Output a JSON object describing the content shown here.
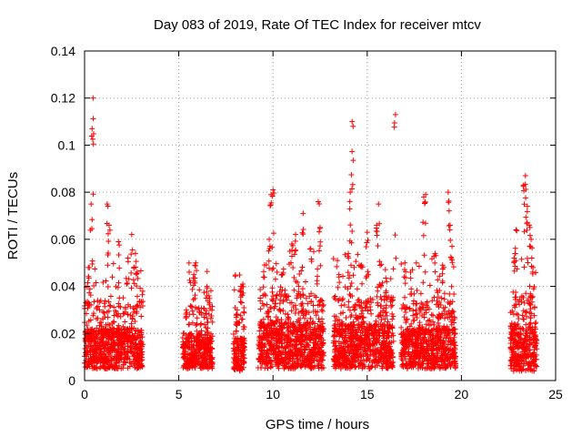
{
  "chart_data": {
    "type": "scatter",
    "title": "Day 083 of 2019, Rate Of TEC Index for receiver mtcv",
    "xlabel": "GPS time / hours",
    "ylabel": "ROTI / TECUs",
    "xlim": [
      0,
      25
    ],
    "ylim": [
      0,
      0.14
    ],
    "x_ticks": [
      0,
      5,
      10,
      15,
      20,
      25
    ],
    "x_tick_labels": [
      "0",
      "5",
      "10",
      "15",
      "20",
      "25"
    ],
    "y_ticks": [
      0,
      0.02,
      0.04,
      0.06,
      0.08,
      0.1,
      0.12,
      0.14
    ],
    "y_tick_labels": [
      "0",
      "0.02",
      "0.04",
      "0.06",
      "0.08",
      "0.1",
      "0.12",
      "0.14"
    ],
    "grid": true,
    "marker": "+",
    "series_color": "#ff0000",
    "clusters": [
      {
        "x_range": [
          0.0,
          3.1
        ],
        "y_base": [
          0.005,
          0.022
        ],
        "peaks": [
          [
            0.2,
            0.048
          ],
          [
            0.35,
            0.075
          ],
          [
            0.4,
            0.107
          ],
          [
            0.45,
            0.12
          ],
          [
            1.2,
            0.075
          ],
          [
            1.3,
            0.066
          ],
          [
            1.8,
            0.059
          ],
          [
            2.3,
            0.052
          ],
          [
            2.5,
            0.062
          ],
          [
            2.7,
            0.054
          ],
          [
            2.8,
            0.046
          ]
        ]
      },
      {
        "x_range": [
          5.2,
          6.8
        ],
        "y_base": [
          0.005,
          0.02
        ],
        "peaks": [
          [
            5.4,
            0.03
          ],
          [
            5.8,
            0.045
          ],
          [
            5.9,
            0.05
          ],
          [
            6.5,
            0.04
          ],
          [
            6.6,
            0.036
          ]
        ]
      },
      {
        "x_range": [
          7.9,
          8.5
        ],
        "y_base": [
          0.004,
          0.018
        ],
        "peaks": [
          [
            8.1,
            0.03
          ],
          [
            8.3,
            0.04
          ],
          [
            8.4,
            0.041
          ]
        ]
      },
      {
        "x_range": [
          9.2,
          12.7
        ],
        "y_base": [
          0.005,
          0.025
        ],
        "peaks": [
          [
            9.5,
            0.044
          ],
          [
            9.9,
            0.079
          ],
          [
            10.0,
            0.081
          ],
          [
            9.8,
            0.06
          ],
          [
            10.5,
            0.045
          ],
          [
            11.0,
            0.058
          ],
          [
            11.2,
            0.062
          ],
          [
            11.6,
            0.071
          ],
          [
            12.0,
            0.056
          ],
          [
            12.4,
            0.076
          ],
          [
            12.5,
            0.065
          ]
        ]
      },
      {
        "x_range": [
          13.2,
          16.4
        ],
        "y_base": [
          0.005,
          0.024
        ],
        "peaks": [
          [
            13.5,
            0.045
          ],
          [
            14.1,
            0.08
          ],
          [
            14.2,
            0.11
          ],
          [
            14.25,
            0.108
          ],
          [
            14.0,
            0.054
          ],
          [
            14.7,
            0.049
          ],
          [
            15.0,
            0.063
          ],
          [
            15.5,
            0.066
          ],
          [
            15.6,
            0.075
          ],
          [
            16.0,
            0.038
          ],
          [
            16.5,
            0.113
          ]
        ]
      },
      {
        "x_range": [
          16.8,
          19.7
        ],
        "y_base": [
          0.005,
          0.022
        ],
        "peaks": [
          [
            17.0,
            0.05
          ],
          [
            17.3,
            0.046
          ],
          [
            18.0,
            0.078
          ],
          [
            18.1,
            0.079
          ],
          [
            18.6,
            0.054
          ],
          [
            19.0,
            0.049
          ],
          [
            19.3,
            0.08
          ],
          [
            19.4,
            0.066
          ],
          [
            19.5,
            0.057
          ]
        ]
      },
      {
        "x_range": [
          22.6,
          24.0
        ],
        "y_base": [
          0.004,
          0.024
        ],
        "peaks": [
          [
            22.8,
            0.052
          ],
          [
            22.9,
            0.064
          ],
          [
            23.3,
            0.083
          ],
          [
            23.4,
            0.087
          ],
          [
            23.5,
            0.074
          ],
          [
            23.6,
            0.066
          ],
          [
            23.7,
            0.06
          ],
          [
            23.8,
            0.048
          ]
        ]
      }
    ]
  }
}
